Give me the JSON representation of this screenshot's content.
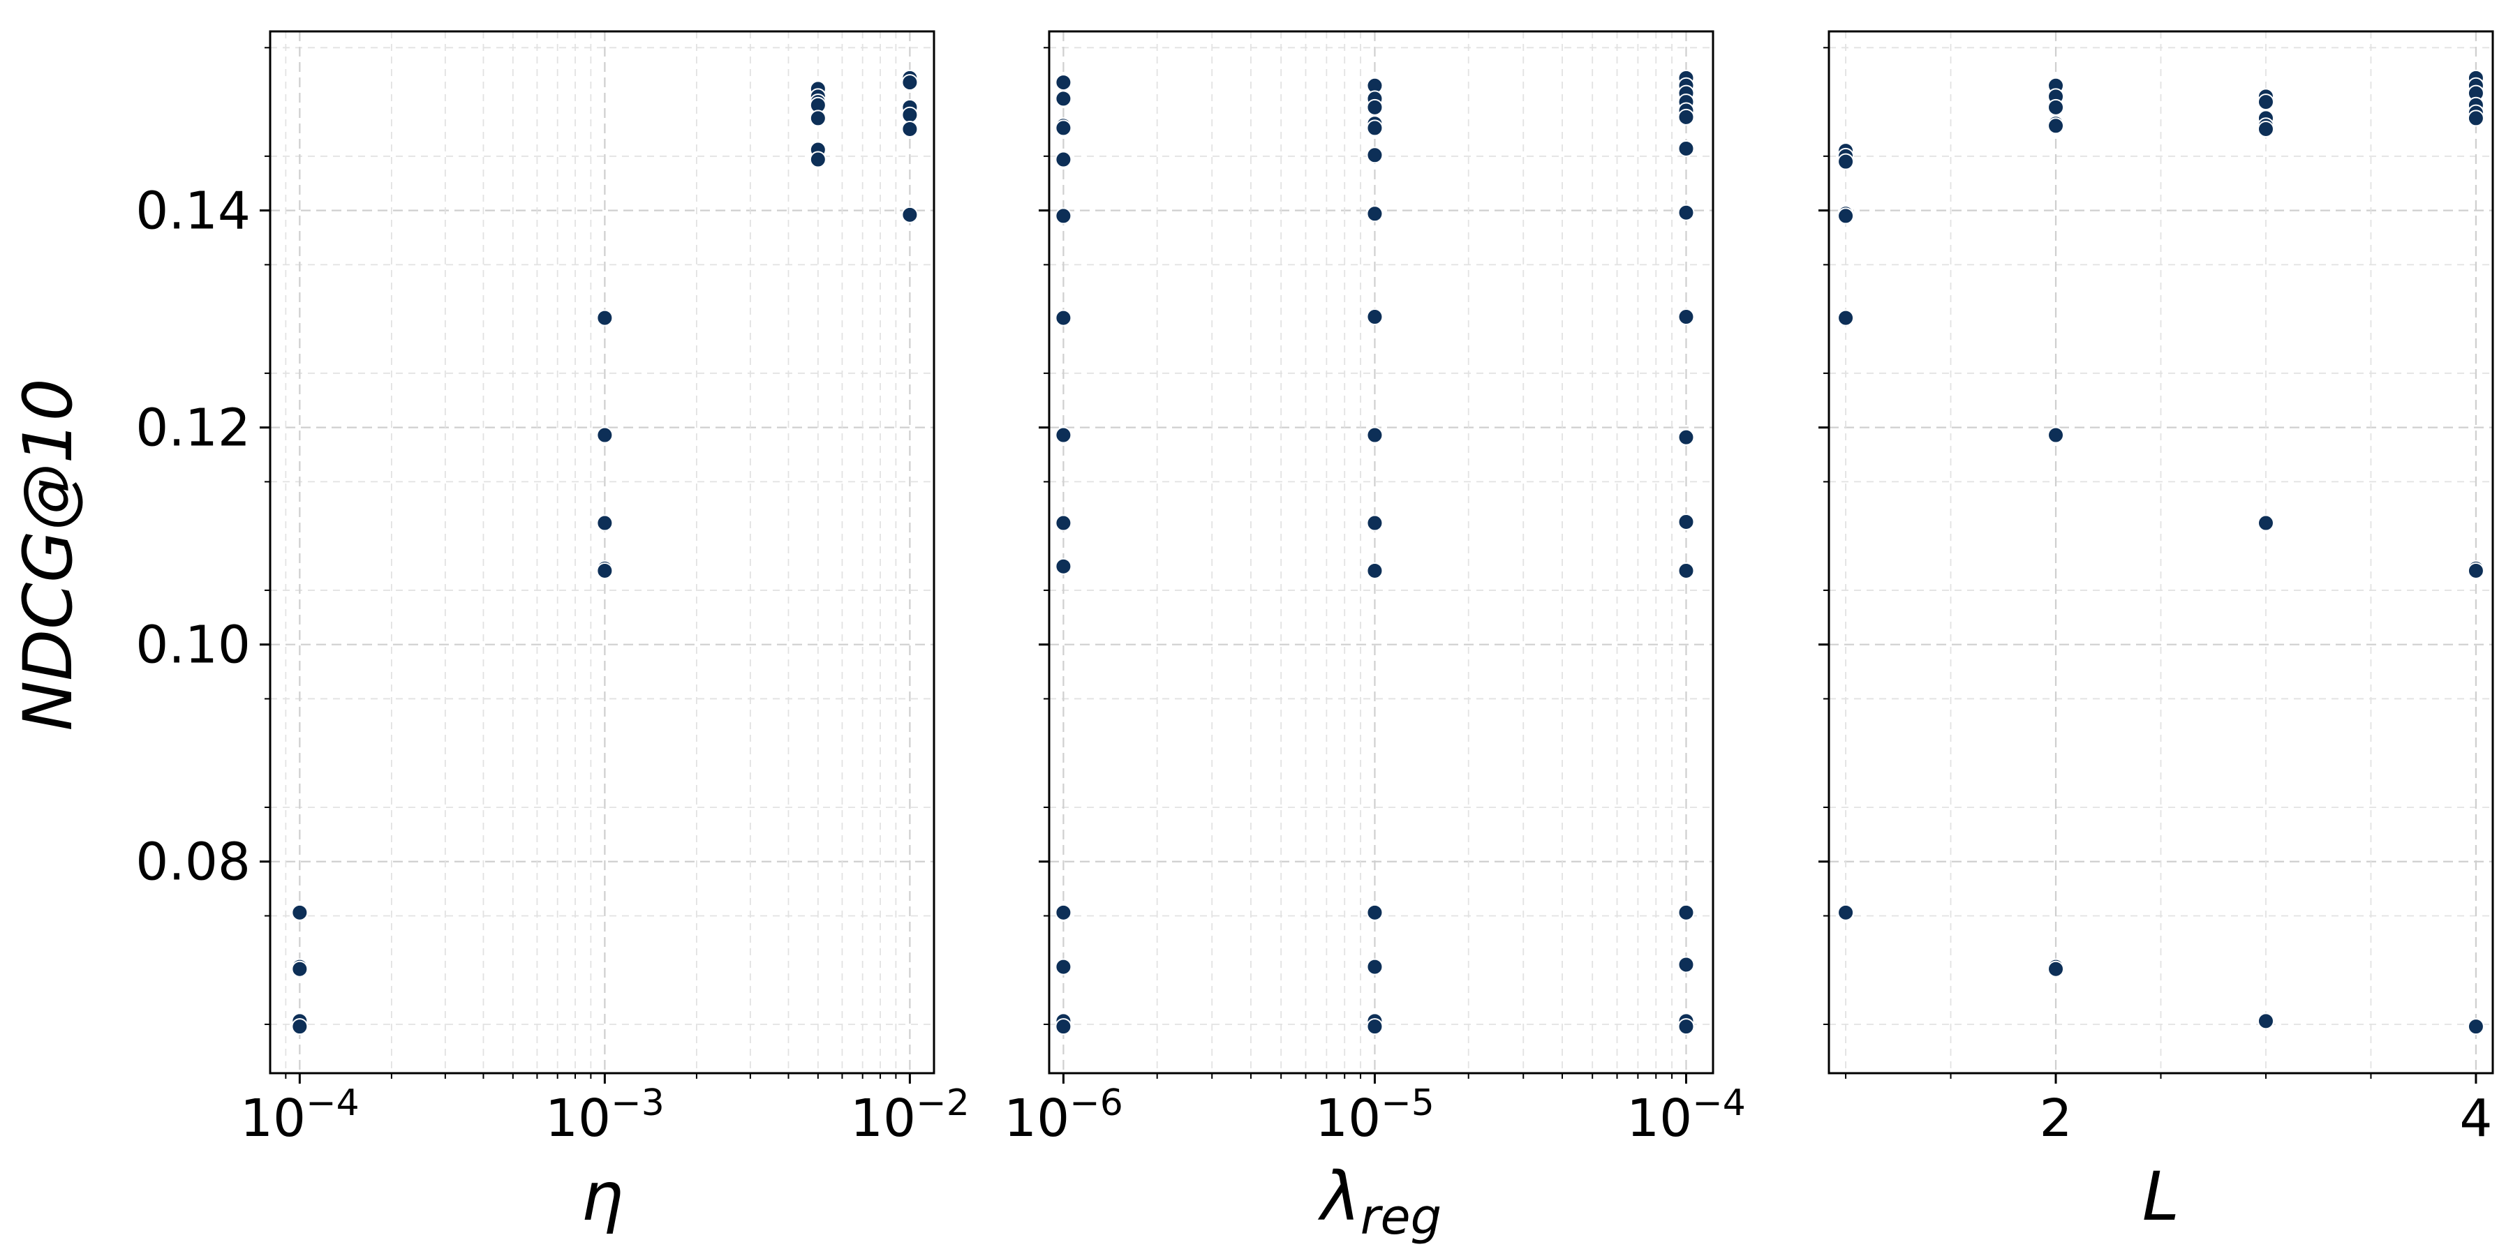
{
  "chart_data": {
    "type": "scatter",
    "ylabel": "NDCG@10",
    "ylim": [
      0.0605,
      0.1565
    ],
    "yticks": [
      0.08,
      0.1,
      0.12,
      0.14
    ],
    "ytick_labels": [
      "0.08",
      "0.10",
      "0.12",
      "0.14"
    ],
    "grid": true,
    "series_color": "#0d2f57",
    "subplots": [
      {
        "xlabel": "η",
        "xscale": "log",
        "xlim": [
          8e-05,
          0.012
        ],
        "xticks": [
          0.0001,
          0.001,
          0.01
        ],
        "xtick_labels": [
          {
            "base": "10",
            "exp": "−4"
          },
          {
            "base": "10",
            "exp": "−3"
          },
          {
            "base": "10",
            "exp": "−2"
          }
        ],
        "points": [
          [
            0.0001,
            0.0753
          ],
          [
            0.0001,
            0.0703
          ],
          [
            0.0001,
            0.0701
          ],
          [
            0.0001,
            0.0653
          ],
          [
            0.0001,
            0.0648
          ],
          [
            0.001,
            0.1301
          ],
          [
            0.001,
            0.1193
          ],
          [
            0.001,
            0.1112
          ],
          [
            0.001,
            0.107
          ],
          [
            0.001,
            0.1068
          ],
          [
            0.005,
            0.1512
          ],
          [
            0.005,
            0.1505
          ],
          [
            0.005,
            0.15
          ],
          [
            0.005,
            0.1497
          ],
          [
            0.005,
            0.1485
          ],
          [
            0.005,
            0.1456
          ],
          [
            0.005,
            0.1447
          ],
          [
            0.01,
            0.1522
          ],
          [
            0.01,
            0.1518
          ],
          [
            0.01,
            0.1495
          ],
          [
            0.01,
            0.1488
          ],
          [
            0.01,
            0.1475
          ],
          [
            0.01,
            0.1396
          ]
        ]
      },
      {
        "xlabel": "λ",
        "xlabel_sub": "reg",
        "xscale": "log",
        "xlim": [
          9e-07,
          0.000122
        ],
        "xticks": [
          1e-06,
          1e-05,
          0.0001
        ],
        "xtick_labels": [
          {
            "base": "10",
            "exp": "−6"
          },
          {
            "base": "10",
            "exp": "−5"
          },
          {
            "base": "10",
            "exp": "−4"
          }
        ],
        "points": [
          [
            1e-06,
            0.1518
          ],
          [
            1e-06,
            0.1503
          ],
          [
            1e-06,
            0.1478
          ],
          [
            1e-06,
            0.1476
          ],
          [
            1e-06,
            0.1447
          ],
          [
            1e-06,
            0.1395
          ],
          [
            1e-06,
            0.1301
          ],
          [
            1e-06,
            0.1193
          ],
          [
            1e-06,
            0.1112
          ],
          [
            1e-06,
            0.1072
          ],
          [
            1e-06,
            0.0753
          ],
          [
            1e-06,
            0.0703
          ],
          [
            1e-06,
            0.0653
          ],
          [
            1e-06,
            0.0648
          ],
          [
            1e-05,
            0.1515
          ],
          [
            1e-05,
            0.1503
          ],
          [
            1e-05,
            0.1495
          ],
          [
            1e-05,
            0.148
          ],
          [
            1e-05,
            0.1476
          ],
          [
            1e-05,
            0.1451
          ],
          [
            1e-05,
            0.1397
          ],
          [
            1e-05,
            0.1302
          ],
          [
            1e-05,
            0.1193
          ],
          [
            1e-05,
            0.1112
          ],
          [
            1e-05,
            0.1068
          ],
          [
            1e-05,
            0.0753
          ],
          [
            1e-05,
            0.0703
          ],
          [
            1e-05,
            0.0653
          ],
          [
            1e-05,
            0.0648
          ],
          [
            0.0001,
            0.1522
          ],
          [
            0.0001,
            0.1515
          ],
          [
            0.0001,
            0.1508
          ],
          [
            0.0001,
            0.15
          ],
          [
            0.0001,
            0.1492
          ],
          [
            0.0001,
            0.1486
          ],
          [
            0.0001,
            0.1457
          ],
          [
            0.0001,
            0.1398
          ],
          [
            0.0001,
            0.1302
          ],
          [
            0.0001,
            0.1191
          ],
          [
            0.0001,
            0.1113
          ],
          [
            0.0001,
            0.1068
          ],
          [
            0.0001,
            0.0753
          ],
          [
            0.0001,
            0.0705
          ],
          [
            0.0001,
            0.0653
          ],
          [
            0.0001,
            0.0648
          ]
        ]
      },
      {
        "xlabel": "L",
        "xscale": "linear",
        "xlim": [
          0.92,
          4.08
        ],
        "xticks": [
          2,
          4
        ],
        "xtick_labels": [
          "2",
          "4"
        ],
        "points": [
          [
            1,
            0.1455
          ],
          [
            1,
            0.145
          ],
          [
            1,
            0.1445
          ],
          [
            1,
            0.1397
          ],
          [
            1,
            0.1395
          ],
          [
            1,
            0.1301
          ],
          [
            1,
            0.0753
          ],
          [
            2,
            0.1515
          ],
          [
            2,
            0.1505
          ],
          [
            2,
            0.1495
          ],
          [
            2,
            0.148
          ],
          [
            2,
            0.1478
          ],
          [
            2,
            0.1193
          ],
          [
            2,
            0.0703
          ],
          [
            2,
            0.0701
          ],
          [
            3,
            0.1505
          ],
          [
            3,
            0.15
          ],
          [
            3,
            0.1485
          ],
          [
            3,
            0.1478
          ],
          [
            3,
            0.1475
          ],
          [
            3,
            0.1112
          ],
          [
            3,
            0.0653
          ],
          [
            4,
            0.1522
          ],
          [
            4,
            0.1515
          ],
          [
            4,
            0.1508
          ],
          [
            4,
            0.1497
          ],
          [
            4,
            0.149
          ],
          [
            4,
            0.1485
          ],
          [
            4,
            0.107
          ],
          [
            4,
            0.1068
          ],
          [
            4,
            0.0648
          ]
        ]
      }
    ]
  }
}
